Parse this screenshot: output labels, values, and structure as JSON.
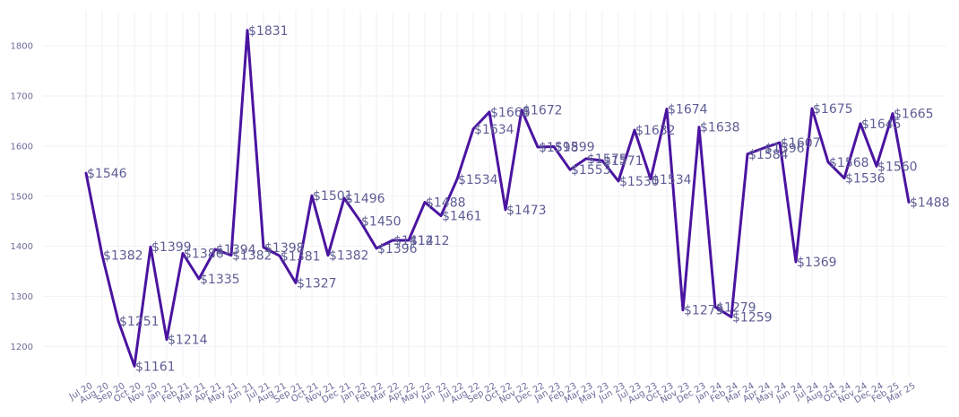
{
  "chart_data": {
    "type": "line",
    "title": "",
    "xlabel": "",
    "ylabel": "",
    "ylim": [
      1140,
      1870
    ],
    "yticks": [
      1200,
      1300,
      1400,
      1500,
      1600,
      1700,
      1800
    ],
    "grid": true,
    "line_color": "#4a14a0",
    "label_color": "#5d5d95",
    "categories": [
      "Jul 20",
      "Aug 20",
      "Sep 20",
      "Oct 20",
      "Nov 20",
      "Jan 21",
      "Feb 21",
      "Mar 21",
      "Apr 21",
      "May 21",
      "Jun 21",
      "Jul 21",
      "Aug 21",
      "Sep 21",
      "Oct 21",
      "Nov 21",
      "Dec 21",
      "Jan 22",
      "Feb 22",
      "Mar 22",
      "Apr 22",
      "May 22",
      "Jun 22",
      "Jul 22",
      "Aug 22",
      "Sep 22",
      "Oct 22",
      "Nov 22",
      "Dec 22",
      "Jan 23",
      "Feb 23",
      "Mar 23",
      "May 23",
      "Jun 23",
      "Jul 23",
      "Aug 23",
      "Oct 23",
      "Nov 23",
      "Dec 23",
      "Jan 24",
      "Feb 24",
      "Mar 24",
      "Apr 24",
      "May 24",
      "Jun 24",
      "Jul 24",
      "Aug 24",
      "Oct 24",
      "Nov 24",
      "Dec 24",
      "Feb 25",
      "Mar 25"
    ],
    "values": [
      1546,
      1382,
      1251,
      1161,
      1399,
      1214,
      1386,
      1335,
      1394,
      1382,
      1831,
      1398,
      1381,
      1327,
      1501,
      1382,
      1496,
      1450,
      1396,
      1412,
      1412,
      1488,
      1461,
      1534,
      1634,
      1668,
      1473,
      1672,
      1598,
      1599,
      1553,
      1575,
      1571,
      1530,
      1632,
      1534,
      1674,
      1273,
      1638,
      1279,
      1259,
      1584,
      1596,
      1607,
      1369,
      1675,
      1568,
      1536,
      1645,
      1560,
      1665,
      1488
    ],
    "labels": [
      "$1546",
      "$1382",
      "$1251",
      "$1161",
      "$1399",
      "$1214",
      "$1386",
      "$1335",
      "$1394",
      "$1382",
      "$1831",
      "$1398",
      "$1381",
      "$1327",
      "$1501",
      "$1382",
      "$1496",
      "$1450",
      "$1396",
      "$1412",
      "$1412",
      "$1488",
      "$1461",
      "$1534",
      "$1634",
      "$1668",
      "$1473",
      "$1672",
      "$1598",
      "$1599",
      "$1553",
      "$1575",
      "$1571",
      "$1530",
      "$1632",
      "$1534",
      "$1674",
      "$1273",
      "$1638",
      "$1279",
      "$1259",
      "$1584",
      "$1596",
      "$1607",
      "$1369",
      "$1675",
      "$1568",
      "$1536",
      "$1645",
      "$1560",
      "$1665",
      "$1488"
    ]
  }
}
